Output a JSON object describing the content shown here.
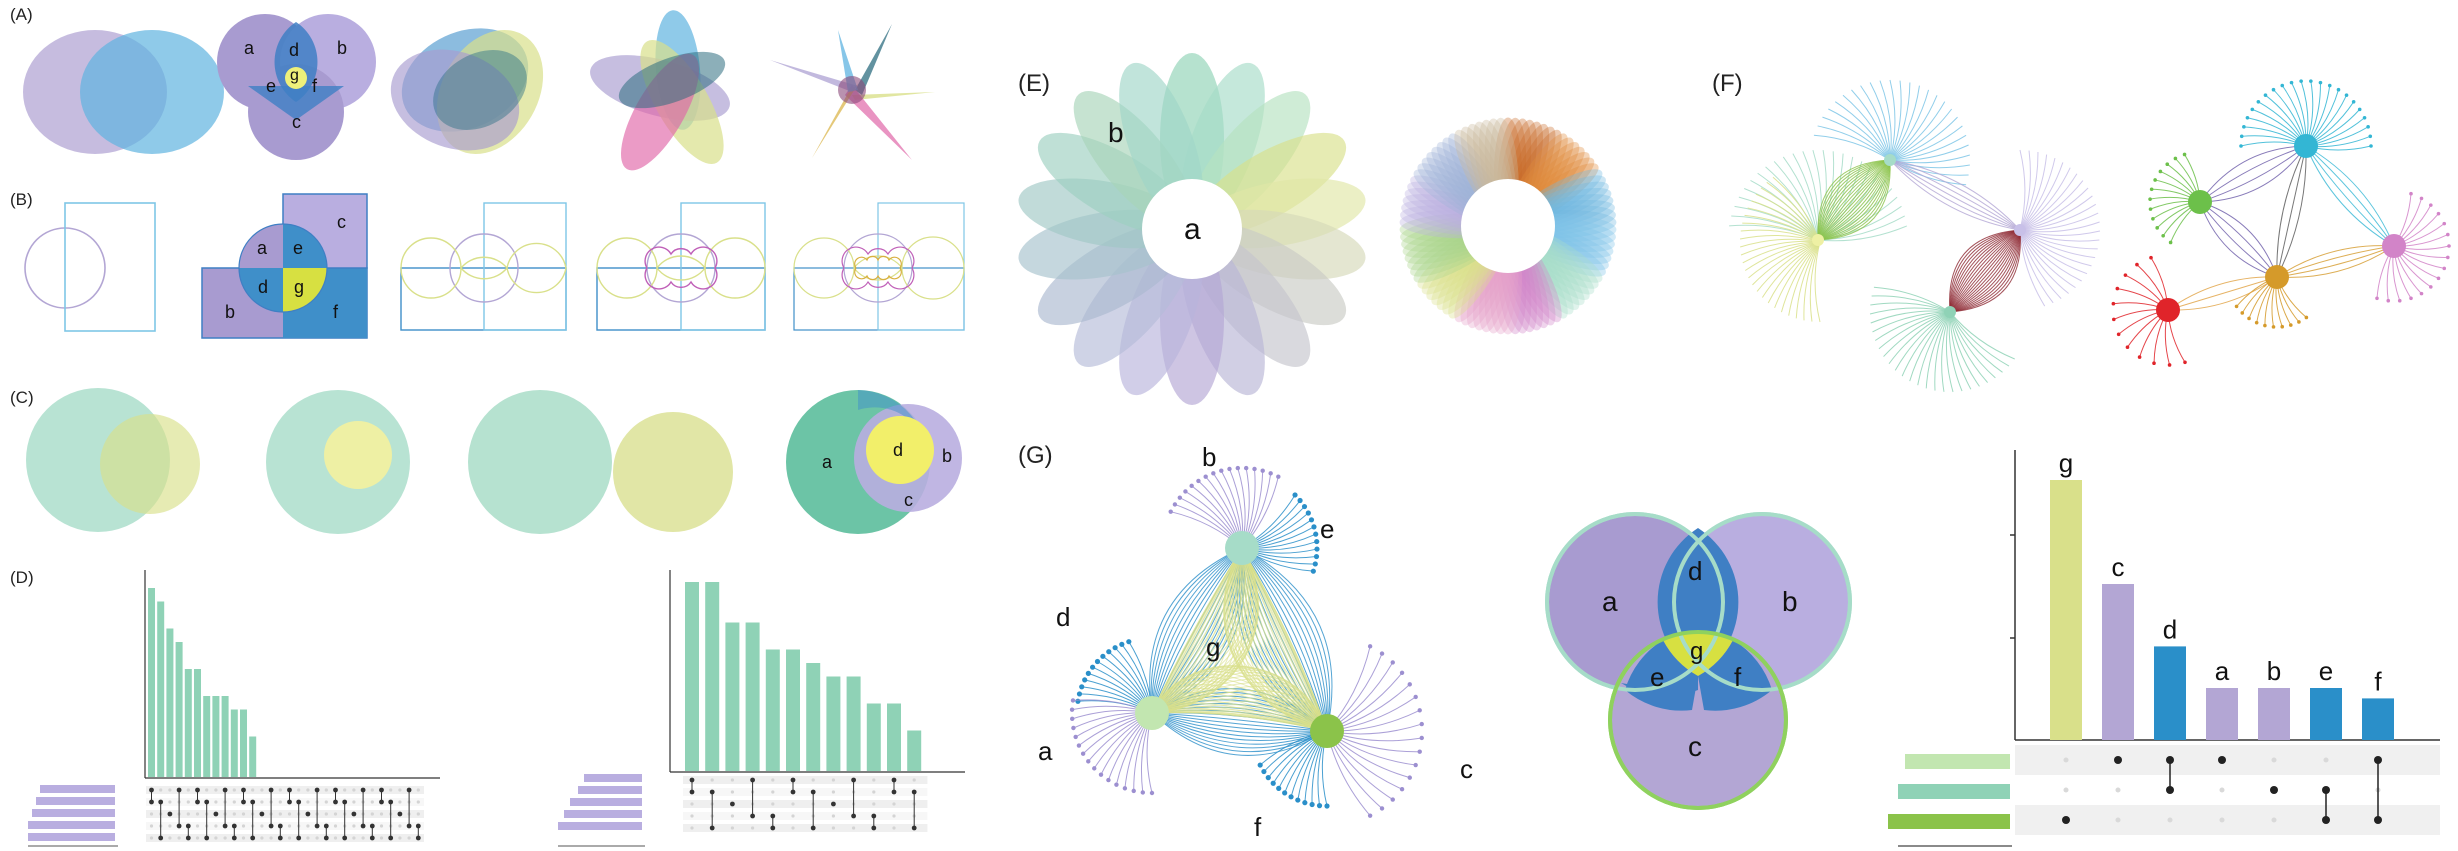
{
  "panels": {
    "A": "(A)",
    "B": "(B)",
    "C": "(C)",
    "D": "(D)",
    "E": "(E)",
    "F": "(F)",
    "G": "(G)"
  },
  "labels": {
    "a": "a",
    "b": "b",
    "c": "c",
    "d": "d",
    "e": "e",
    "f": "f",
    "g": "g"
  },
  "colors": {
    "purple": "#b3a6d4",
    "blue": "#3f8fc9",
    "green": "#8fd2b6",
    "yellowgreen": "#d9e08a",
    "yellow": "#f2ef6a",
    "darkred": "#8e2b34",
    "red": "#e0242a",
    "cyan": "#33b6d4",
    "lime": "#6cc04a",
    "orange": "#d59a2a",
    "pink": "#d284c8",
    "bar": "#8fd2b6",
    "setbar": "#b9aee0"
  },
  "upset_D1": {
    "values": [
      14,
      13,
      11,
      10,
      8,
      8,
      6,
      6,
      6,
      5,
      5,
      3,
      0,
      0,
      0,
      0,
      0,
      0,
      0,
      0,
      0,
      0,
      0,
      0,
      0,
      0,
      0,
      0,
      0,
      0
    ]
  },
  "upset_D2": {
    "values": [
      14,
      14,
      11,
      11,
      9,
      9,
      8,
      7,
      7,
      5,
      5,
      3
    ]
  },
  "chart_data": {
    "type": "bar",
    "categories": [
      "g",
      "c",
      "d",
      "a",
      "b",
      "e",
      "f"
    ],
    "values": [
      10,
      6,
      3.6,
      2,
      2,
      2,
      1.6
    ],
    "colors": [
      "#d9e08a",
      "#b3a6d4",
      "#2a8fc9",
      "#b3a6d4",
      "#b3a6d4",
      "#2a8fc9",
      "#2a8fc9"
    ],
    "sets": [
      "a",
      "b",
      "c"
    ],
    "matrix": [
      [
        0,
        0,
        1
      ],
      [
        1,
        0,
        0
      ],
      [
        1,
        1,
        0
      ],
      [
        1,
        0,
        0
      ],
      [
        0,
        1,
        0
      ],
      [
        0,
        1,
        1
      ],
      [
        1,
        0,
        1
      ]
    ]
  }
}
